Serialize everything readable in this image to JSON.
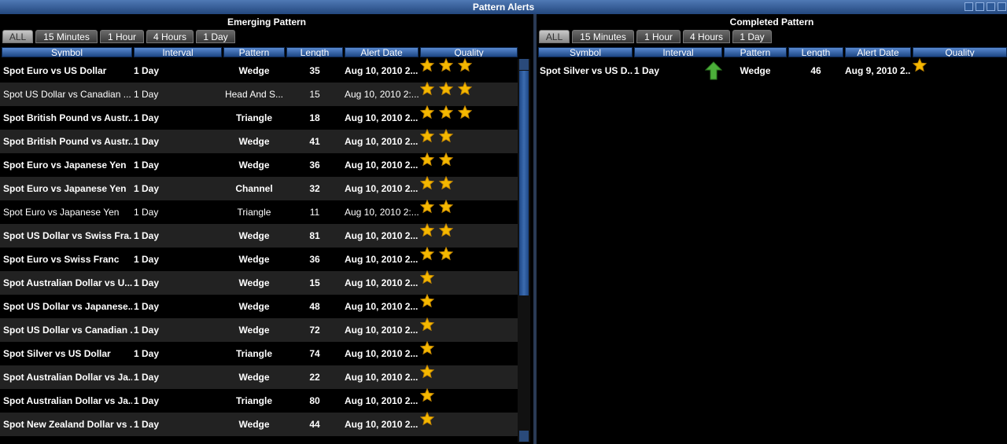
{
  "window_title": "Pattern Alerts",
  "panels": [
    {
      "title": "Emerging Pattern",
      "tabs": [
        "ALL",
        "15 Minutes",
        "1 Hour",
        "4 Hours",
        "1 Day"
      ],
      "columns": [
        "Symbol",
        "Interval",
        "Pattern",
        "Length",
        "Alert Date",
        "Quality"
      ],
      "rows": [
        {
          "symbol": "Spot Euro vs US Dollar",
          "interval": "1 Day",
          "pattern": "Wedge",
          "length": 35,
          "alert_date": "Aug 10, 2010 2...",
          "quality": 3,
          "bold": true
        },
        {
          "symbol": "Spot US Dollar vs Canadian ...",
          "interval": "1 Day",
          "pattern": "Head And S...",
          "length": 15,
          "alert_date": "Aug 10, 2010 2:...",
          "quality": 3,
          "bold": false
        },
        {
          "symbol": "Spot British Pound vs Austr...",
          "interval": "1 Day",
          "pattern": "Triangle",
          "length": 18,
          "alert_date": "Aug 10, 2010 2...",
          "quality": 3,
          "bold": true
        },
        {
          "symbol": "Spot British Pound vs Austr...",
          "interval": "1 Day",
          "pattern": "Wedge",
          "length": 41,
          "alert_date": "Aug 10, 2010 2...",
          "quality": 2,
          "bold": true
        },
        {
          "symbol": "Spot Euro vs Japanese Yen",
          "interval": "1 Day",
          "pattern": "Wedge",
          "length": 36,
          "alert_date": "Aug 10, 2010 2...",
          "quality": 2,
          "bold": true
        },
        {
          "symbol": "Spot Euro vs Japanese Yen",
          "interval": "1 Day",
          "pattern": "Channel",
          "length": 32,
          "alert_date": "Aug 10, 2010 2...",
          "quality": 2,
          "bold": true
        },
        {
          "symbol": "Spot Euro vs Japanese Yen",
          "interval": "1 Day",
          "pattern": "Triangle",
          "length": 11,
          "alert_date": "Aug 10, 2010 2:...",
          "quality": 2,
          "bold": false
        },
        {
          "symbol": "Spot US Dollar vs Swiss Fra...",
          "interval": "1 Day",
          "pattern": "Wedge",
          "length": 81,
          "alert_date": "Aug 10, 2010 2...",
          "quality": 2,
          "bold": true
        },
        {
          "symbol": "Spot Euro vs Swiss Franc",
          "interval": "1 Day",
          "pattern": "Wedge",
          "length": 36,
          "alert_date": "Aug 10, 2010 2...",
          "quality": 2,
          "bold": true
        },
        {
          "symbol": "Spot Australian Dollar vs U...",
          "interval": "1 Day",
          "pattern": "Wedge",
          "length": 15,
          "alert_date": "Aug 10, 2010 2...",
          "quality": 1,
          "bold": true
        },
        {
          "symbol": "Spot US Dollar vs Japanese...",
          "interval": "1 Day",
          "pattern": "Wedge",
          "length": 48,
          "alert_date": "Aug 10, 2010 2...",
          "quality": 1,
          "bold": true
        },
        {
          "symbol": "Spot US Dollar vs Canadian ...",
          "interval": "1 Day",
          "pattern": "Wedge",
          "length": 72,
          "alert_date": "Aug 10, 2010 2...",
          "quality": 1,
          "bold": true
        },
        {
          "symbol": "Spot Silver vs US Dollar",
          "interval": "1 Day",
          "pattern": "Triangle",
          "length": 74,
          "alert_date": "Aug 10, 2010 2...",
          "quality": 1,
          "bold": true
        },
        {
          "symbol": "Spot Australian Dollar vs Ja...",
          "interval": "1 Day",
          "pattern": "Wedge",
          "length": 22,
          "alert_date": "Aug 10, 2010 2...",
          "quality": 1,
          "bold": true
        },
        {
          "symbol": "Spot Australian Dollar vs Ja...",
          "interval": "1 Day",
          "pattern": "Triangle",
          "length": 80,
          "alert_date": "Aug 10, 2010 2...",
          "quality": 1,
          "bold": true
        },
        {
          "symbol": "Spot New Zealand Dollar vs ...",
          "interval": "1 Day",
          "pattern": "Wedge",
          "length": 44,
          "alert_date": "Aug 10, 2010 2...",
          "quality": 1,
          "bold": true
        }
      ]
    },
    {
      "title": "Completed Pattern",
      "tabs": [
        "ALL",
        "15 Minutes",
        "1 Hour",
        "4 Hours",
        "1 Day"
      ],
      "columns": [
        "Symbol",
        "Interval",
        "Pattern",
        "Length",
        "Alert Date",
        "Quality"
      ],
      "rows": [
        {
          "symbol": "Spot Silver vs US D...",
          "interval": "1 Day",
          "arrow": "up",
          "pattern": "Wedge",
          "length": 46,
          "alert_date": "Aug 9, 2010 2...",
          "quality": 1,
          "bold": true
        }
      ]
    }
  ]
}
